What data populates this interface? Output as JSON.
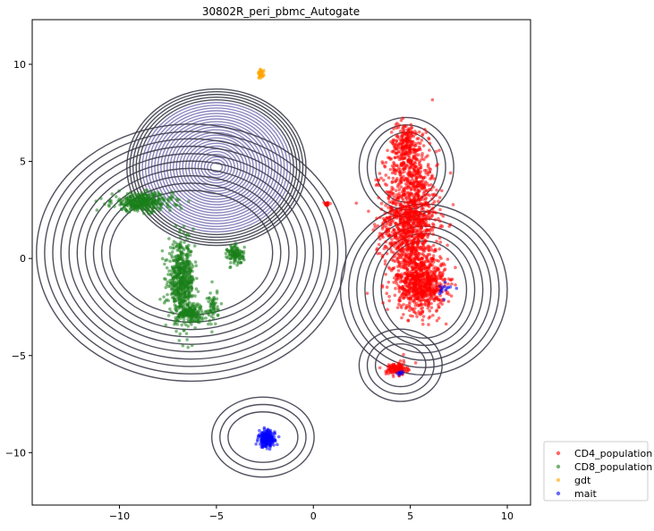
{
  "chart_data": {
    "type": "scatter",
    "title": "30802R_peri_pbmc_Autogate",
    "xlabel": "",
    "ylabel": "",
    "xlim": [
      -14.5,
      11.2
    ],
    "ylim": [
      -12.7,
      12.3
    ],
    "x_ticks": [
      -10,
      -5,
      0,
      5,
      10
    ],
    "y_ticks": [
      -10,
      -5,
      0,
      5,
      10
    ],
    "x_tick_labels": [
      "−10",
      "−5",
      "0",
      "5",
      "10"
    ],
    "y_tick_labels": [
      "−10",
      "−5",
      "0",
      "5",
      "10"
    ],
    "grid": false,
    "legend_position": "lower-right, outside plot",
    "series": [
      {
        "name": "CD4_population",
        "color": "#ff0000",
        "clusters": [
          {
            "center": [
              5.0,
              2.0
            ],
            "spread": [
              1.15,
              3.0
            ],
            "count": 1300
          },
          {
            "center": [
              5.6,
              -1.3
            ],
            "spread": [
              1.0,
              1.2
            ],
            "count": 700
          },
          {
            "center": [
              4.8,
              5.8
            ],
            "spread": [
              0.7,
              1.0
            ],
            "count": 250
          },
          {
            "center": [
              4.3,
              -5.7
            ],
            "spread": [
              0.45,
              0.25
            ],
            "count": 150
          },
          {
            "center": [
              0.7,
              2.8
            ],
            "spread": [
              0.12,
              0.08
            ],
            "count": 20
          }
        ]
      },
      {
        "name": "CD8_population",
        "color": "#1a7f1a",
        "clusters": [
          {
            "center": [
              -8.8,
              2.9
            ],
            "spread": [
              1.3,
              0.4
            ],
            "count": 350
          },
          {
            "center": [
              -6.8,
              -1.2
            ],
            "spread": [
              0.55,
              1.6
            ],
            "count": 600
          },
          {
            "center": [
              -6.3,
              -2.8
            ],
            "spread": [
              0.5,
              0.4
            ],
            "count": 150
          },
          {
            "center": [
              -4.0,
              0.2
            ],
            "spread": [
              0.35,
              0.4
            ],
            "count": 120
          },
          {
            "center": [
              -5.2,
              -2.5
            ],
            "spread": [
              0.25,
              0.8
            ],
            "count": 60
          }
        ]
      },
      {
        "name": "gdt",
        "color": "#ffa500",
        "clusters": [
          {
            "center": [
              -2.7,
              9.5
            ],
            "spread": [
              0.12,
              0.2
            ],
            "count": 40
          }
        ]
      },
      {
        "name": "mait",
        "color": "#0000ff",
        "clusters": [
          {
            "center": [
              -2.4,
              -9.3
            ],
            "spread": [
              0.35,
              0.35
            ],
            "count": 200
          },
          {
            "center": [
              6.6,
              -1.6
            ],
            "spread": [
              0.4,
              0.3
            ],
            "count": 15
          },
          {
            "center": [
              4.5,
              -5.9
            ],
            "spread": [
              0.3,
              0.1
            ],
            "count": 8
          }
        ]
      }
    ],
    "contours": [
      {
        "center": [
          -5.0,
          4.7
        ],
        "radii": [
          0.3,
          0.25
        ],
        "levels": 28,
        "color_inner": "#7f78b8",
        "color_outer": "#3d3d4c"
      },
      {
        "center": [
          -6.3,
          0.3
        ],
        "radii": [
          4.2,
          3.2
        ],
        "levels": 10,
        "color": "#3d3d4c"
      },
      {
        "center": [
          5.7,
          -1.6
        ],
        "radii": [
          2.2,
          2.5
        ],
        "levels": 6,
        "color": "#3d3d4c"
      },
      {
        "center": [
          4.8,
          4.7
        ],
        "radii": [
          1.6,
          1.8
        ],
        "levels": 3,
        "color": "#3d3d4c"
      },
      {
        "center": [
          4.5,
          -5.5
        ],
        "radii": [
          1.3,
          1.1
        ],
        "levels": 3,
        "color": "#3d3d4c"
      },
      {
        "center": [
          -2.6,
          -9.2
        ],
        "radii": [
          1.8,
          1.3
        ],
        "levels": 3,
        "color": "#3d3d4c"
      }
    ]
  }
}
